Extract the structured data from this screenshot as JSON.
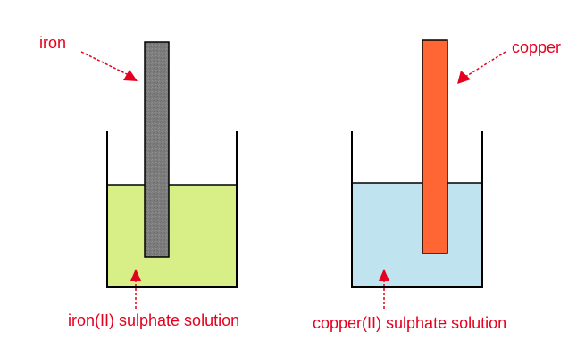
{
  "labels": {
    "iron": "iron",
    "copper": "copper",
    "iron_solution": "iron(II) sulphate solution",
    "copper_solution": "copper(II) sulphate solution"
  },
  "colors": {
    "label_text": "#e4001e",
    "arrow": "#e4001e",
    "iron_solution": "#d8ee86",
    "copper_solution": "#bfe3ef",
    "iron_rod": "#7f7f7f",
    "copper_rod": "#ff6633",
    "beaker_outline": "#000000"
  }
}
